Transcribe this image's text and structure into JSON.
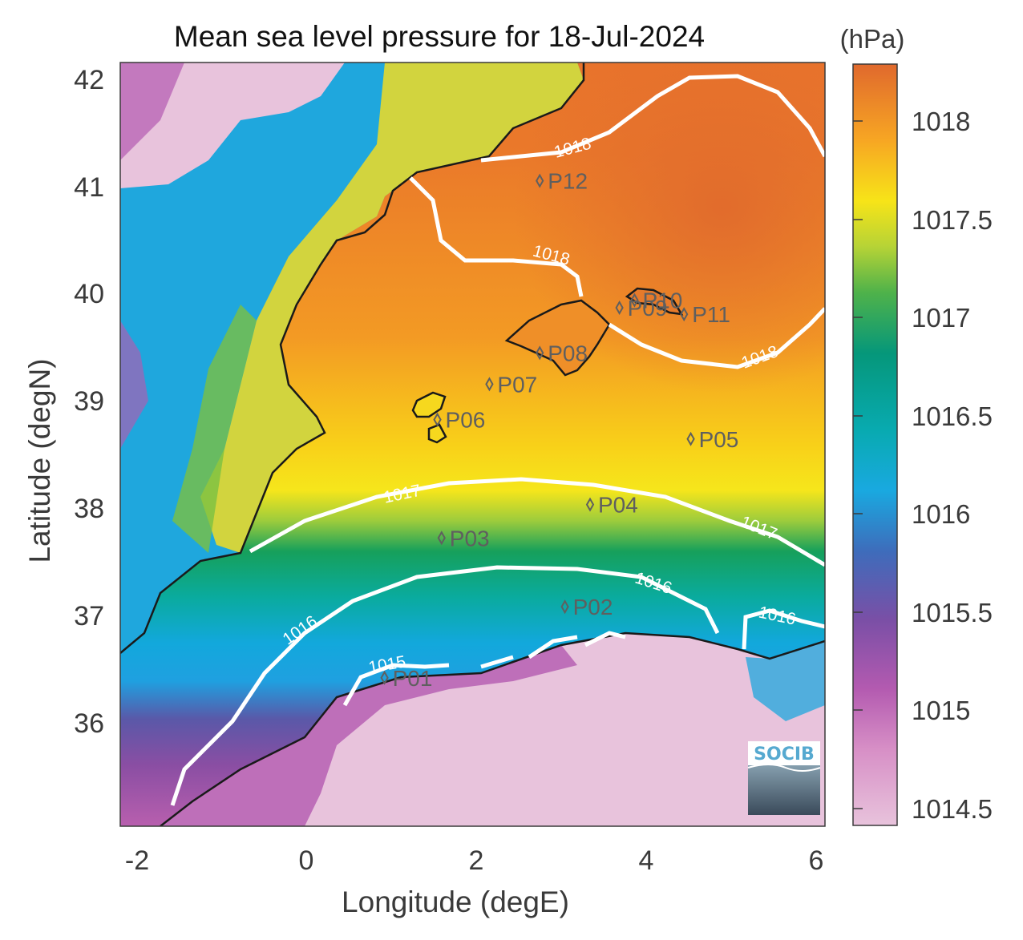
{
  "title": "Mean sea level pressure for 18-Jul-2024",
  "xlabel": "Longitude (degE)",
  "ylabel": "Latitude (degN)",
  "x_ticks": [
    "-2",
    "0",
    "2",
    "4",
    "6"
  ],
  "y_ticks": [
    "42",
    "41",
    "40",
    "39",
    "38",
    "37",
    "36"
  ],
  "colorbar": {
    "unit": "(hPa)",
    "ticks": [
      "1018",
      "1017.5",
      "1017",
      "1016.5",
      "1016",
      "1015.5",
      "1015",
      "1014.5"
    ],
    "colors": [
      "#e8c3dc",
      "#c25fb3",
      "#7a4fa6",
      "#19a9e0",
      "#08aab0",
      "#05977a",
      "#8dc63f",
      "#f7e418",
      "#f7a623",
      "#e0692d"
    ]
  },
  "contour_labels": [
    "1018",
    "1018",
    "1018",
    "1017",
    "1017",
    "1016",
    "1016",
    "1016",
    "1015"
  ],
  "stations": [
    {
      "id": "P01",
      "lon": 0.85,
      "lat": 36.48
    },
    {
      "id": "P02",
      "lon": 3.0,
      "lat": 37.14
    },
    {
      "id": "P03",
      "lon": 1.53,
      "lat": 37.78
    },
    {
      "id": "P04",
      "lon": 3.3,
      "lat": 38.09
    },
    {
      "id": "P05",
      "lon": 4.5,
      "lat": 38.7
    },
    {
      "id": "P06",
      "lon": 1.48,
      "lat": 38.88
    },
    {
      "id": "P07",
      "lon": 2.1,
      "lat": 39.21
    },
    {
      "id": "P08",
      "lon": 2.7,
      "lat": 39.5
    },
    {
      "id": "P09",
      "lon": 3.65,
      "lat": 39.92
    },
    {
      "id": "P10",
      "lon": 3.83,
      "lat": 39.99
    },
    {
      "id": "P11",
      "lon": 4.42,
      "lat": 39.86
    },
    {
      "id": "P12",
      "lon": 2.7,
      "lat": 41.1
    }
  ],
  "logo": {
    "text": "SOCIB"
  },
  "chart_data": {
    "type": "heatmap",
    "title": "Mean sea level pressure for 18-Jul-2024",
    "xlabel": "Longitude (degE)",
    "ylabel": "Latitude (degN)",
    "xlim": [
      -2.3,
      6.1
    ],
    "ylim": [
      35.1,
      42.2
    ],
    "value_range": [
      1014.4,
      1018.3
    ],
    "unit": "hPa",
    "contour_levels": [
      1015,
      1016,
      1017,
      1018
    ]
  }
}
